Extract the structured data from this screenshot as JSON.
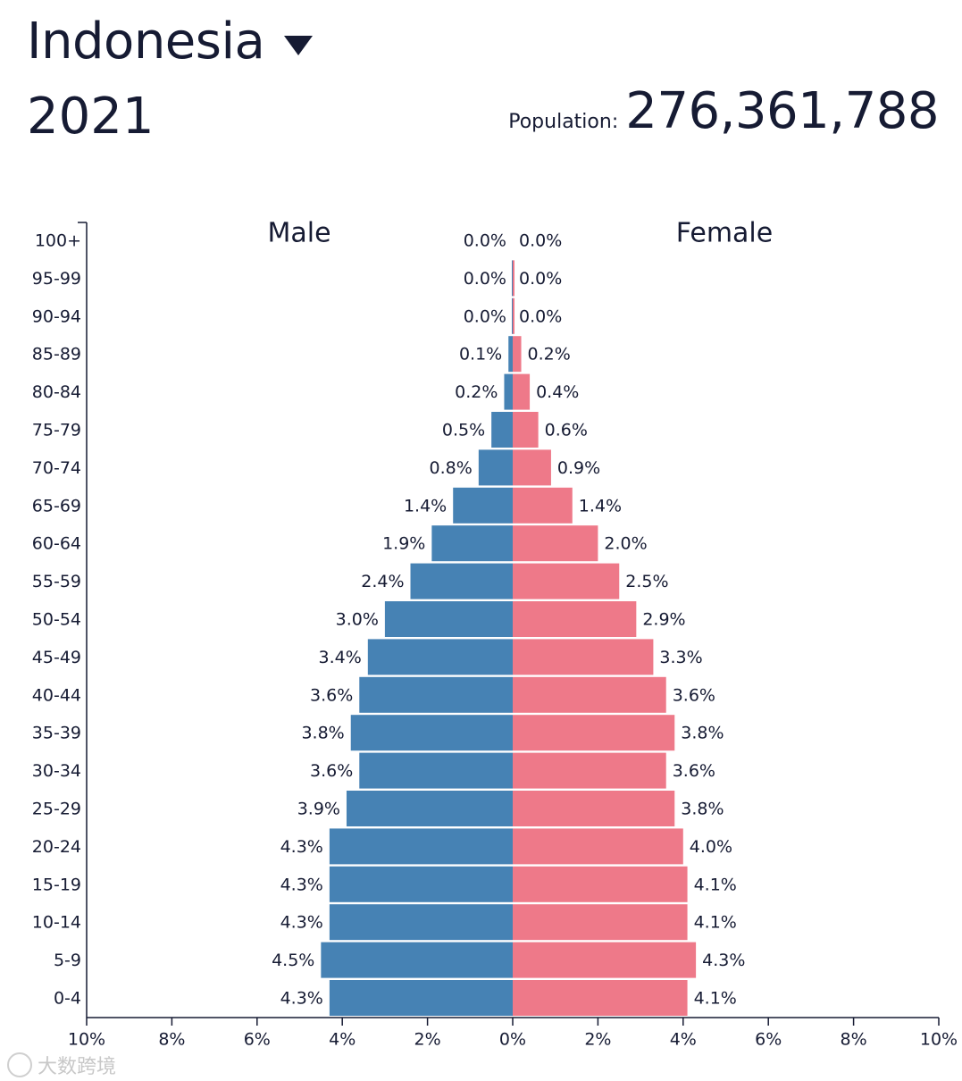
{
  "header": {
    "country": "Indonesia",
    "year": "2021",
    "population_label": "Population:",
    "population_value": "276,361,788"
  },
  "watermark": {
    "text": "大数跨境"
  },
  "chart_data": {
    "type": "bar",
    "subtype": "population-pyramid",
    "title": "Indonesia 2021",
    "categories": [
      "0-4",
      "5-9",
      "10-14",
      "15-19",
      "20-24",
      "25-29",
      "30-34",
      "35-39",
      "40-44",
      "45-49",
      "50-54",
      "55-59",
      "60-64",
      "65-69",
      "70-74",
      "75-79",
      "80-84",
      "85-89",
      "90-94",
      "95-99",
      "100+"
    ],
    "series": [
      {
        "name": "Male",
        "color": "#4682b4",
        "values": [
          4.3,
          4.5,
          4.3,
          4.3,
          4.3,
          3.9,
          3.6,
          3.8,
          3.6,
          3.4,
          3.0,
          2.4,
          1.9,
          1.4,
          0.8,
          0.5,
          0.2,
          0.1,
          0.0,
          0.0,
          0.0
        ],
        "labels": [
          "4.3%",
          "4.5%",
          "4.3%",
          "4.3%",
          "4.3%",
          "3.9%",
          "3.6%",
          "3.8%",
          "3.6%",
          "3.4%",
          "3.0%",
          "2.4%",
          "1.9%",
          "1.4%",
          "0.8%",
          "0.5%",
          "0.2%",
          "0.1%",
          "0.0%",
          "0.0%",
          "0.0%"
        ]
      },
      {
        "name": "Female",
        "color": "#ee7989",
        "values": [
          4.1,
          4.3,
          4.1,
          4.1,
          4.0,
          3.8,
          3.6,
          3.8,
          3.6,
          3.3,
          2.9,
          2.5,
          2.0,
          1.4,
          0.9,
          0.6,
          0.4,
          0.2,
          0.0,
          0.0,
          0.0
        ],
        "labels": [
          "4.1%",
          "4.3%",
          "4.1%",
          "4.1%",
          "4.0%",
          "3.8%",
          "3.6%",
          "3.8%",
          "3.6%",
          "3.3%",
          "2.9%",
          "2.5%",
          "2.0%",
          "1.4%",
          "0.9%",
          "0.6%",
          "0.4%",
          "0.2%",
          "0.0%",
          "0.0%",
          "0.0%"
        ]
      }
    ],
    "xlim": [
      -10,
      10
    ],
    "xticks": [
      "10%",
      "8%",
      "6%",
      "4%",
      "2%",
      "0%",
      "2%",
      "4%",
      "6%",
      "8%",
      "10%"
    ],
    "xlabel": "",
    "ylabel": ""
  }
}
